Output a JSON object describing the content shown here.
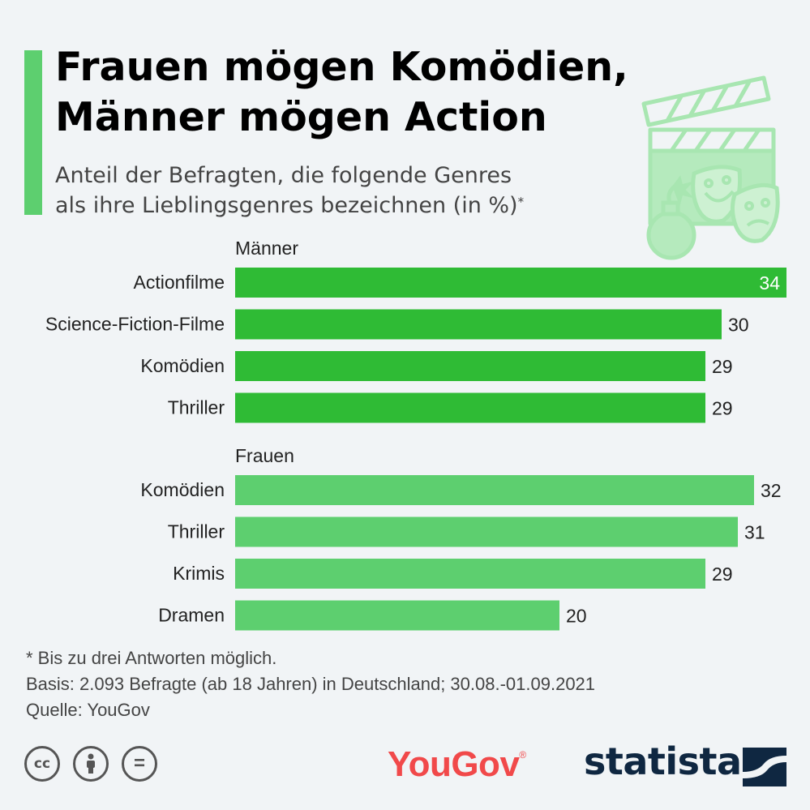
{
  "header": {
    "title_line1": "Frauen mögen Komödien,",
    "title_line2": "Männer mögen Action",
    "subtitle_line1": "Anteil der Befragten, die folgende Genres",
    "subtitle_line2": "als ihre Lieblingsgenres bezeichnen (in %)",
    "subtitle_mark": "*"
  },
  "chart_data": {
    "type": "bar",
    "orientation": "horizontal",
    "xlim": [
      0,
      34
    ],
    "grid": false,
    "groups": [
      {
        "name": "Männer",
        "color": "#2fbb35",
        "categories": [
          "Actionfilme",
          "Science-Fiction-Filme",
          "Komödien",
          "Thriller"
        ],
        "values": [
          34,
          30,
          29,
          29
        ]
      },
      {
        "name": "Frauen",
        "color": "#5dcf6f",
        "categories": [
          "Komödien",
          "Thriller",
          "Krimis",
          "Dramen"
        ],
        "values": [
          32,
          31,
          29,
          20
        ]
      }
    ]
  },
  "footer": {
    "note": "* Bis zu drei Antworten möglich.",
    "basis": "Basis: 2.093 Befragte (ab 18 Jahren) in Deutschland; 30.08.-01.09.2021",
    "source": "Quelle: YouGov"
  },
  "brands": {
    "yougov": "YouGov",
    "yougov_mark": "®",
    "statista": "statista",
    "yougov_color": "#f1494a",
    "statista_color": "#0f2741"
  },
  "license_icons": [
    "cc-icon",
    "attribution-icon",
    "no-derivatives-icon"
  ],
  "license_glyphs": {
    "cc": "cc",
    "nd": "="
  }
}
